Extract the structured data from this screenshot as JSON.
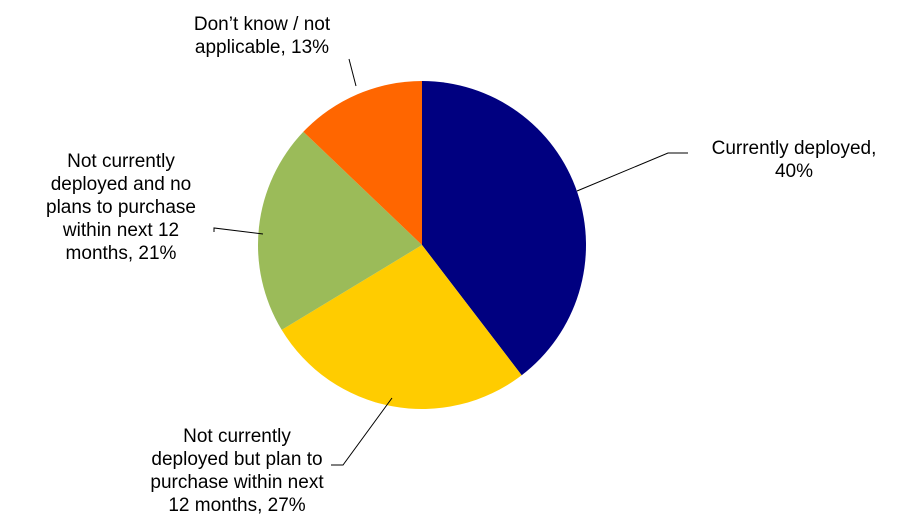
{
  "chart_data": {
    "type": "pie",
    "title": "",
    "slices": [
      {
        "name": "Currently deployed",
        "value": 40,
        "color": "#000080",
        "label_lines": [
          "Currently deployed,",
          "40%"
        ]
      },
      {
        "name": "Not currently deployed but plan to purchase within next 12 months",
        "value": 27,
        "color": "#FFCC00",
        "label_lines": [
          "Not currently",
          "deployed but plan to",
          "purchase within next",
          "12 months, 27%"
        ]
      },
      {
        "name": "Not currently deployed and no plans to purchase within next 12 months",
        "value": 21,
        "color": "#9BBB59",
        "label_lines": [
          "Not currently",
          "deployed and no",
          "plans to purchase",
          "within next 12",
          "months, 21%"
        ]
      },
      {
        "name": "Don’t know / not applicable",
        "value": 13,
        "color": "#FF6600",
        "label_lines": [
          "Don’t know / not",
          "applicable, 13%"
        ]
      }
    ],
    "start_angle": "12 o'clock",
    "direction": "clockwise",
    "legend": "none",
    "data_labels": "outside with leader lines"
  }
}
